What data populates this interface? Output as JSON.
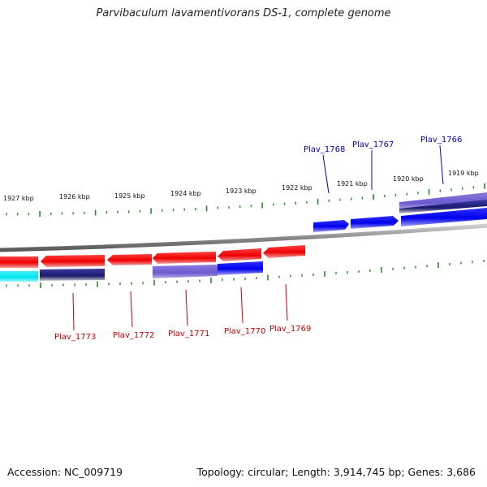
{
  "title": "Parvibaculum lavamentivorans DS-1, complete genome",
  "accession": "Accession: NC_009719",
  "topology": "Topology: circular; Length: 3,914,745 bp; Genes: 3,686",
  "colors": {
    "forward": "#0000ee",
    "reverse": "#ee0000",
    "forward_label": "#0000cc",
    "reverse_label": "#cc0000",
    "ticks": "#2a8a2a",
    "backbone": "#8a8a8a",
    "cyan": "#00e5ee",
    "slate": "#6a5acd",
    "navy": "#1a1a6e"
  },
  "scale_labels": [
    "1927 kbp",
    "1926 kbp",
    "1925 kbp",
    "1924 kbp",
    "1923 kbp",
    "1922 kbp",
    "1921 kbp",
    "1920 kbp",
    "1919 kbp"
  ],
  "forward_genes": [
    "Plav_1768",
    "Plav_1767",
    "Plav_1766"
  ],
  "reverse_genes": [
    "Plav_1773",
    "Plav_1772",
    "Plav_1771",
    "Plav_1770",
    "Plav_1769"
  ]
}
